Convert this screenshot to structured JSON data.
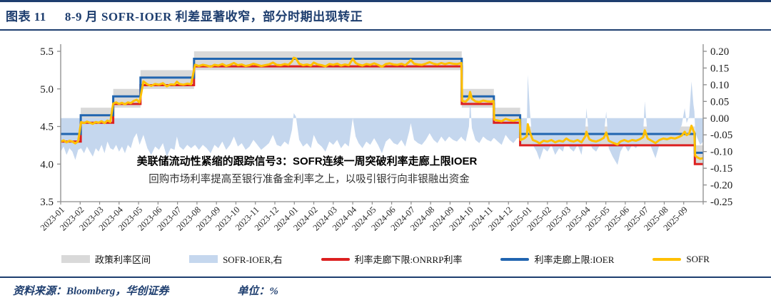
{
  "header": {
    "tag": "图表 11",
    "title": "8-9 月 SOFR-IOER 利差显著收窄，部分时期出现转正"
  },
  "annotation": {
    "line1": "美联储流动性紧缩的跟踪信号3：SOFR连续一周突破利率走廊上限IOER",
    "line2": "回购市场利率提高至银行准备金利率之上，以吸引银行向非银融出资金"
  },
  "legend": [
    {
      "label": "政策利率区间",
      "swatch": "area",
      "color": "#D9D9D9"
    },
    {
      "label": "SOFR-IOER,右",
      "swatch": "area",
      "color": "#C5D7EE"
    },
    {
      "label": "利率走廊下限:ONRRP利率",
      "swatch": "line",
      "color": "#DC2020"
    },
    {
      "label": "利率走廊上限:IOER",
      "swatch": "line",
      "color": "#2165B0"
    },
    {
      "label": "SOFR",
      "swatch": "line",
      "color": "#FFC000"
    }
  ],
  "footer": {
    "source": "资料来源：Bloomberg，华创证券",
    "unit": "单位：%"
  },
  "colors": {
    "navy": "#1E3E6F",
    "band": "#D9D9D9",
    "area": "#C5D7EE",
    "red": "#DC2020",
    "blue": "#2165B0",
    "yellow": "#FFC000",
    "axis": "#8C8C8C"
  },
  "chart_data": {
    "type": "area",
    "title": "8-9月 SOFR-IOER 利差显著收窄，部分时期出现转正",
    "unit": "%",
    "left_axis": {
      "min": 3.5,
      "max": 5.5,
      "ticks": [
        "5.5",
        "5.0",
        "4.5",
        "4.0",
        "3.5"
      ],
      "tick_values": [
        5.5,
        5.0,
        4.5,
        4.0,
        3.5
      ]
    },
    "right_axis": {
      "min": -0.25,
      "max": 0.2,
      "ticks": [
        "0.20",
        "0.15",
        "0.10",
        "0.05",
        "0.00",
        "-0.05",
        "-0.10",
        "-0.15",
        "-0.20",
        "-0.25"
      ],
      "tick_values": [
        0.2,
        0.15,
        0.1,
        0.05,
        0.0,
        -0.05,
        -0.1,
        -0.15,
        -0.2,
        -0.25
      ]
    },
    "grid": false,
    "legend_position": "bottom",
    "x_labels": [
      "2023-01",
      "2023-02",
      "2023-03",
      "2023-04",
      "2023-05",
      "2023-06",
      "2023-07",
      "2023-08",
      "2023-09",
      "2023-10",
      "2023-11",
      "2023-12",
      "2024-01",
      "2024-02",
      "2024-03",
      "2024-04",
      "2024-05",
      "2024-06",
      "2024-07",
      "2024-08",
      "2024-09",
      "2024-10",
      "2024-11",
      "2024-12",
      "2025-01",
      "2025-02",
      "2025-03",
      "2025-04",
      "2025-05",
      "2025-06",
      "2025-07",
      "2025-08",
      "2025-09"
    ],
    "t_max": 33,
    "policy_steps": [
      {
        "t0": 0.0,
        "t1": 1.03,
        "band": [
          4.25,
          4.5
        ],
        "ioer": 4.4,
        "onrrp": 4.3
      },
      {
        "t0": 1.03,
        "t1": 2.7,
        "band": [
          4.5,
          4.75
        ],
        "ioer": 4.65,
        "onrrp": 4.55
      },
      {
        "t0": 2.7,
        "t1": 4.1,
        "band": [
          4.75,
          5.0
        ],
        "ioer": 4.9,
        "onrrp": 4.8
      },
      {
        "t0": 4.1,
        "t1": 6.85,
        "band": [
          5.0,
          5.25
        ],
        "ioer": 5.15,
        "onrrp": 5.05
      },
      {
        "t0": 6.85,
        "t1": 20.6,
        "band": [
          5.25,
          5.5
        ],
        "ioer": 5.4,
        "onrrp": 5.3
      },
      {
        "t0": 20.6,
        "t1": 22.25,
        "band": [
          4.75,
          5.0
        ],
        "ioer": 4.9,
        "onrrp": 4.8
      },
      {
        "t0": 22.25,
        "t1": 23.6,
        "band": [
          4.5,
          4.75
        ],
        "ioer": 4.65,
        "onrrp": 4.55
      },
      {
        "t0": 23.6,
        "t1": 32.57,
        "band": [
          4.25,
          4.5
        ],
        "ioer": 4.4,
        "onrrp": 4.25
      },
      {
        "t0": 32.57,
        "t1": 33.0,
        "band": [
          4.0,
          4.25
        ],
        "ioer": 4.15,
        "onrrp": 4.0
      }
    ],
    "series_notes": "t is months since 2023-01. 'spread' = SOFR-IOER (right axis). SOFR line (left axis) = ioer(t) + spread(t). 政策利率区间 = band, 利率走廊上限:IOER = ioer steps, 利率走廊下限:ONRRP利率 = onrrp steps.",
    "spread_points": [
      [
        0,
        -0.1
      ],
      [
        0.15,
        -0.085
      ],
      [
        0.3,
        -0.11
      ],
      [
        0.45,
        -0.09
      ],
      [
        0.6,
        -0.1
      ],
      [
        0.75,
        -0.125
      ],
      [
        0.9,
        -0.095
      ],
      [
        1.05,
        -0.09
      ],
      [
        1.2,
        -0.105
      ],
      [
        1.35,
        -0.085
      ],
      [
        1.5,
        -0.1
      ],
      [
        1.65,
        -0.115
      ],
      [
        1.8,
        -0.09
      ],
      [
        1.95,
        -0.1
      ],
      [
        2.1,
        -0.08
      ],
      [
        2.25,
        -0.105
      ],
      [
        2.4,
        -0.07
      ],
      [
        2.55,
        -0.09
      ],
      [
        2.7,
        -0.095
      ],
      [
        2.85,
        -0.08
      ],
      [
        3,
        -0.1
      ],
      [
        3.15,
        -0.085
      ],
      [
        3.3,
        -0.105
      ],
      [
        3.45,
        -0.08
      ],
      [
        3.6,
        -0.09
      ],
      [
        3.75,
        -0.06
      ],
      [
        3.9,
        -0.045
      ],
      [
        4.05,
        -0.08
      ],
      [
        4.25,
        -0.05
      ],
      [
        4.45,
        -0.09
      ],
      [
        4.65,
        -0.11
      ],
      [
        4.85,
        -0.085
      ],
      [
        5.05,
        -0.095
      ],
      [
        5.25,
        -0.075
      ],
      [
        5.45,
        -0.115
      ],
      [
        5.65,
        -0.09
      ],
      [
        5.85,
        -0.095
      ],
      [
        5.97,
        -0.055
      ],
      [
        6.1,
        -0.085
      ],
      [
        6.3,
        -0.095
      ],
      [
        6.5,
        -0.08
      ],
      [
        6.7,
        -0.09
      ],
      [
        6.9,
        -0.08
      ],
      [
        7.1,
        -0.095
      ],
      [
        7.3,
        -0.08
      ],
      [
        7.5,
        -0.09
      ],
      [
        7.7,
        -0.105
      ],
      [
        7.9,
        -0.08
      ],
      [
        8.1,
        -0.09
      ],
      [
        8.3,
        -0.07
      ],
      [
        8.5,
        -0.095
      ],
      [
        8.7,
        -0.08
      ],
      [
        8.9,
        -0.055
      ],
      [
        9.1,
        -0.085
      ],
      [
        9.3,
        -0.075
      ],
      [
        9.5,
        -0.095
      ],
      [
        9.7,
        -0.085
      ],
      [
        9.9,
        -0.065
      ],
      [
        10.1,
        -0.08
      ],
      [
        10.3,
        -0.095
      ],
      [
        10.5,
        -0.085
      ],
      [
        10.7,
        -0.075
      ],
      [
        10.9,
        -0.05
      ],
      [
        11.1,
        -0.08
      ],
      [
        11.3,
        -0.085
      ],
      [
        11.5,
        -0.07
      ],
      [
        11.7,
        -0.08
      ],
      [
        11.88,
        -0.035
      ],
      [
        11.97,
        0.015
      ],
      [
        12.08,
        0.005
      ],
      [
        12.25,
        -0.065
      ],
      [
        12.45,
        -0.085
      ],
      [
        12.65,
        -0.075
      ],
      [
        12.85,
        -0.09
      ],
      [
        13,
        -0.05
      ],
      [
        13.2,
        -0.075
      ],
      [
        13.4,
        -0.085
      ],
      [
        13.6,
        -0.1
      ],
      [
        13.8,
        -0.07
      ],
      [
        14,
        -0.08
      ],
      [
        14.2,
        -0.065
      ],
      [
        14.4,
        -0.09
      ],
      [
        14.6,
        -0.075
      ],
      [
        14.8,
        -0.085
      ],
      [
        15,
        0
      ],
      [
        15.15,
        -0.055
      ],
      [
        15.3,
        -0.075
      ],
      [
        15.5,
        -0.09
      ],
      [
        15.7,
        -0.07
      ],
      [
        15.9,
        -0.08
      ],
      [
        16.1,
        -0.06
      ],
      [
        16.3,
        -0.08
      ],
      [
        16.5,
        -0.105
      ],
      [
        16.7,
        -0.07
      ],
      [
        16.9,
        -0.06
      ],
      [
        17.1,
        -0.075
      ],
      [
        17.3,
        -0.08
      ],
      [
        17.5,
        -0.065
      ],
      [
        17.7,
        -0.085
      ],
      [
        17.9,
        -0.04
      ],
      [
        17.98,
        -0.015
      ],
      [
        18.15,
        -0.065
      ],
      [
        18.35,
        -0.075
      ],
      [
        18.55,
        -0.08
      ],
      [
        18.75,
        -0.065
      ],
      [
        18.95,
        -0.045
      ],
      [
        19.15,
        -0.065
      ],
      [
        19.35,
        -0.075
      ],
      [
        19.55,
        -0.055
      ],
      [
        19.75,
        -0.07
      ],
      [
        19.95,
        -0.055
      ],
      [
        20.15,
        -0.065
      ],
      [
        20.35,
        -0.07
      ],
      [
        20.58,
        -0.055
      ],
      [
        20.62,
        -0.06
      ],
      [
        20.8,
        -0.07
      ],
      [
        20.97,
        -0.025
      ],
      [
        21.03,
        0.06
      ],
      [
        21.12,
        -0.03
      ],
      [
        21.3,
        -0.065
      ],
      [
        21.5,
        -0.075
      ],
      [
        21.7,
        -0.055
      ],
      [
        21.9,
        -0.065
      ],
      [
        22.1,
        -0.07
      ],
      [
        22.23,
        -0.06
      ],
      [
        22.27,
        -0.06
      ],
      [
        22.45,
        -0.07
      ],
      [
        22.65,
        -0.08
      ],
      [
        22.85,
        -0.05
      ],
      [
        23.05,
        -0.065
      ],
      [
        23.25,
        -0.075
      ],
      [
        23.45,
        -0.06
      ],
      [
        23.58,
        -0.06
      ],
      [
        23.62,
        -0.08
      ],
      [
        23.8,
        -0.06
      ],
      [
        23.94,
        -0.03
      ],
      [
        23.99,
        0.13
      ],
      [
        24.1,
        0.02
      ],
      [
        24.25,
        -0.08
      ],
      [
        24.45,
        -0.1
      ],
      [
        24.6,
        -0.125
      ],
      [
        24.8,
        -0.09
      ],
      [
        25,
        -0.1
      ],
      [
        25.2,
        -0.08
      ],
      [
        25.4,
        -0.11
      ],
      [
        25.6,
        -0.09
      ],
      [
        25.8,
        -0.1
      ],
      [
        25.97,
        -0.06
      ],
      [
        26.15,
        -0.09
      ],
      [
        26.35,
        -0.1
      ],
      [
        26.55,
        -0.08
      ],
      [
        26.75,
        -0.11
      ],
      [
        26.95,
        -0.03
      ],
      [
        27,
        0.03
      ],
      [
        27.15,
        -0.07
      ],
      [
        27.3,
        -0.09
      ],
      [
        27.5,
        -0.1
      ],
      [
        27.7,
        -0.08
      ],
      [
        27.9,
        -0.05
      ],
      [
        28.02,
        0.02
      ],
      [
        28.15,
        -0.09
      ],
      [
        28.35,
        -0.115
      ],
      [
        28.6,
        -0.14
      ],
      [
        28.75,
        -0.1
      ],
      [
        28.95,
        -0.08
      ],
      [
        29.15,
        -0.1
      ],
      [
        29.35,
        -0.08
      ],
      [
        29.55,
        -0.09
      ],
      [
        29.75,
        -0.07
      ],
      [
        29.92,
        -0.04
      ],
      [
        30,
        0.05
      ],
      [
        30.15,
        -0.06
      ],
      [
        30.35,
        -0.09
      ],
      [
        30.55,
        -0.12
      ],
      [
        30.75,
        -0.08
      ],
      [
        30.95,
        -0.06
      ],
      [
        31.15,
        -0.07
      ],
      [
        31.35,
        -0.05
      ],
      [
        31.55,
        -0.06
      ],
      [
        31.75,
        -0.04
      ],
      [
        31.9,
        -0.02
      ],
      [
        32.05,
        0.03
      ],
      [
        32.15,
        -0.015
      ],
      [
        32.28,
        0.005
      ],
      [
        32.4,
        0.11
      ],
      [
        32.5,
        0.04
      ],
      [
        32.55,
        0.02
      ],
      [
        32.59,
        -0.04
      ],
      [
        32.7,
        -0.06
      ],
      [
        32.85,
        -0.08
      ],
      [
        33,
        -0.07
      ]
    ]
  }
}
